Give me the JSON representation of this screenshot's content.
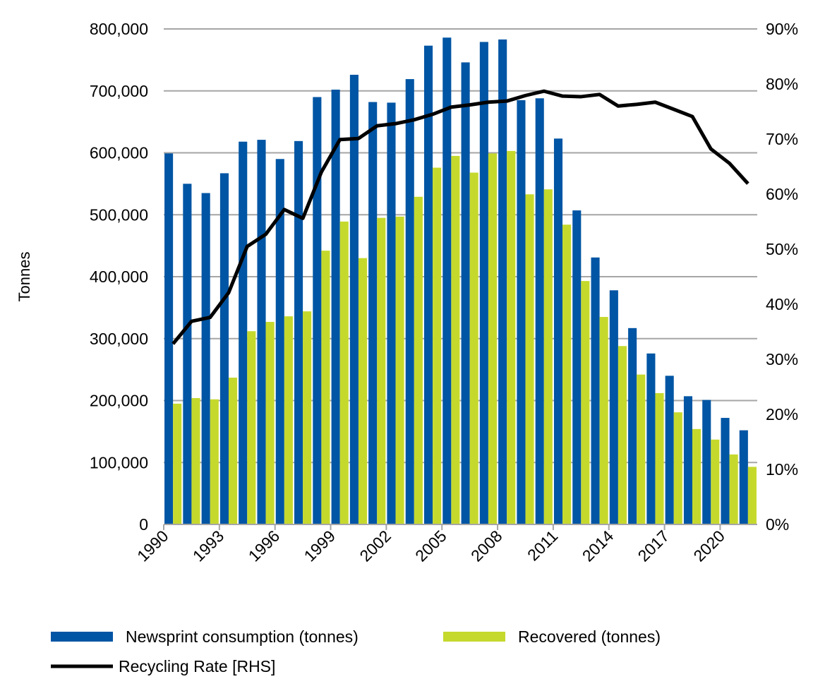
{
  "chart_data": {
    "type": "bar",
    "title": "",
    "xlabel": "",
    "ylabel": "Tonnes",
    "ylim": [
      0,
      800000
    ],
    "y2lim": [
      0,
      0.9
    ],
    "y_ticks": [
      "0",
      "100,000",
      "200,000",
      "300,000",
      "400,000",
      "500,000",
      "600,000",
      "700,000",
      "800,000"
    ],
    "y2_ticks": [
      "0%",
      "10%",
      "20%",
      "30%",
      "40%",
      "50%",
      "60%",
      "70%",
      "80%",
      "90%"
    ],
    "x_tick_labels": [
      "1990",
      "1993",
      "1996",
      "1999",
      "2002",
      "2005",
      "2008",
      "2011",
      "2014",
      "2017",
      "2020"
    ],
    "grid": true,
    "legend_position": "bottom",
    "categories": [
      1990,
      1991,
      1992,
      1993,
      1994,
      1995,
      1996,
      1997,
      1998,
      1999,
      2000,
      2001,
      2002,
      2003,
      2004,
      2005,
      2006,
      2007,
      2008,
      2009,
      2010,
      2011,
      2012,
      2013,
      2014,
      2015,
      2016,
      2017,
      2018,
      2019,
      2020,
      2021
    ],
    "series": [
      {
        "name": "Newsprint consumption (tonnes)",
        "type": "bar",
        "axis": "left",
        "color": "#0055A4",
        "values": [
          599000,
          550000,
          535000,
          567000,
          618000,
          621000,
          590000,
          619000,
          690000,
          702000,
          726000,
          682000,
          681000,
          719000,
          773000,
          786000,
          746000,
          779000,
          783000,
          685000,
          688000,
          623000,
          507000,
          431000,
          378000,
          317000,
          276000,
          240000,
          207000,
          201000,
          172000,
          152000
        ]
      },
      {
        "name": "Recovered (tonnes)",
        "type": "bar",
        "axis": "left",
        "color": "#C5D92D",
        "values": [
          195000,
          204000,
          202000,
          237000,
          312000,
          327000,
          336000,
          344000,
          442000,
          489000,
          430000,
          495000,
          497000,
          529000,
          576000,
          595000,
          568000,
          599000,
          603000,
          533000,
          541000,
          484000,
          393000,
          335000,
          288000,
          242000,
          212000,
          181000,
          154000,
          137000,
          113000,
          93000
        ]
      },
      {
        "name": "Recycling Rate [RHS]",
        "type": "line",
        "axis": "right",
        "color": "#000000",
        "values": [
          0.328,
          0.369,
          0.376,
          0.421,
          0.505,
          0.527,
          0.572,
          0.556,
          0.64,
          0.699,
          0.701,
          0.724,
          0.728,
          0.735,
          0.745,
          0.758,
          0.762,
          0.767,
          0.769,
          0.779,
          0.787,
          0.778,
          0.777,
          0.781,
          0.76,
          0.763,
          0.767,
          0.754,
          0.741,
          0.682,
          0.656,
          0.619
        ]
      }
    ]
  }
}
